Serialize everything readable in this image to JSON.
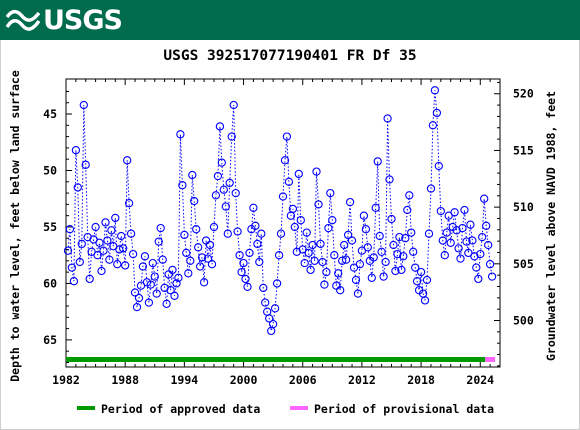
{
  "header": {
    "logo_text": "USGS",
    "logo_icon": "usgs-wave-icon",
    "background": "#006b4d"
  },
  "chart_data": {
    "type": "scatter",
    "title": "USGS 392517077190401 FR Df  35",
    "ylabel_left": "Depth to water level, feet below land surface",
    "ylabel_right": "Groundwater level above NAVD 1988, feet",
    "x_ticks": [
      "1982",
      "1988",
      "1994",
      "2000",
      "2006",
      "2012",
      "2018",
      "2024"
    ],
    "y_ticks_left": [
      "45",
      "50",
      "55",
      "60",
      "65"
    ],
    "y_ticks_right": [
      "500",
      "505",
      "510",
      "515",
      "520"
    ],
    "xlim": [
      1982,
      2026
    ],
    "ylim_left": [
      67.4,
      41.9
    ],
    "ylim_right": [
      495.9,
      521.3
    ],
    "series": [
      {
        "name": "Depth to water level",
        "color": "#0000ff",
        "marker": "open-circle",
        "line": "dotted",
        "points": [
          [
            1982.2,
            57.1
          ],
          [
            1982.4,
            55.2
          ],
          [
            1982.6,
            58.6
          ],
          [
            1982.8,
            59.8
          ],
          [
            1983.0,
            48.2
          ],
          [
            1983.2,
            51.5
          ],
          [
            1983.4,
            58.1
          ],
          [
            1983.6,
            56.5
          ],
          [
            1983.8,
            44.2
          ],
          [
            1984.0,
            49.5
          ],
          [
            1984.2,
            55.9
          ],
          [
            1984.4,
            59.6
          ],
          [
            1984.6,
            57.2
          ],
          [
            1984.8,
            56.1
          ],
          [
            1985.0,
            55.0
          ],
          [
            1985.2,
            57.5
          ],
          [
            1985.4,
            56.4
          ],
          [
            1985.6,
            58.9
          ],
          [
            1985.8,
            57.1
          ],
          [
            1986.0,
            54.6
          ],
          [
            1986.2,
            56.2
          ],
          [
            1986.4,
            57.9
          ],
          [
            1986.6,
            55.3
          ],
          [
            1986.8,
            56.7
          ],
          [
            1987.0,
            54.2
          ],
          [
            1987.2,
            58.3
          ],
          [
            1987.4,
            57.0
          ],
          [
            1987.6,
            55.8
          ],
          [
            1987.8,
            56.9
          ],
          [
            1988.0,
            58.4
          ],
          [
            1988.2,
            49.1
          ],
          [
            1988.4,
            52.9
          ],
          [
            1988.6,
            55.6
          ],
          [
            1988.8,
            57.4
          ],
          [
            1989.0,
            60.8
          ],
          [
            1989.2,
            62.1
          ],
          [
            1989.4,
            61.3
          ],
          [
            1989.6,
            60.2
          ],
          [
            1989.8,
            58.5
          ],
          [
            1990.0,
            57.6
          ],
          [
            1990.2,
            59.9
          ],
          [
            1990.4,
            61.7
          ],
          [
            1990.6,
            60.1
          ],
          [
            1990.8,
            58.2
          ],
          [
            1991.0,
            59.4
          ],
          [
            1991.2,
            60.9
          ],
          [
            1991.4,
            56.3
          ],
          [
            1991.6,
            55.1
          ],
          [
            1991.8,
            57.9
          ],
          [
            1992.0,
            60.4
          ],
          [
            1992.2,
            61.8
          ],
          [
            1992.4,
            59.2
          ],
          [
            1992.6,
            60.6
          ],
          [
            1992.8,
            58.8
          ],
          [
            1993.0,
            61.1
          ],
          [
            1993.2,
            60.0
          ],
          [
            1993.4,
            59.5
          ],
          [
            1993.6,
            46.8
          ],
          [
            1993.8,
            51.3
          ],
          [
            1994.0,
            55.7
          ],
          [
            1994.2,
            57.3
          ],
          [
            1994.4,
            59.1
          ],
          [
            1994.6,
            58.0
          ],
          [
            1994.8,
            50.4
          ],
          [
            1995.0,
            52.7
          ],
          [
            1995.2,
            55.2
          ],
          [
            1995.4,
            56.8
          ],
          [
            1995.6,
            58.5
          ],
          [
            1995.8,
            57.7
          ],
          [
            1996.0,
            59.9
          ],
          [
            1996.2,
            56.2
          ],
          [
            1996.4,
            57.8
          ],
          [
            1996.6,
            56.6
          ],
          [
            1996.8,
            58.3
          ],
          [
            1997.0,
            55.0
          ],
          [
            1997.2,
            52.2
          ],
          [
            1997.4,
            50.5
          ],
          [
            1997.6,
            46.1
          ],
          [
            1997.8,
            49.3
          ],
          [
            1998.0,
            51.7
          ],
          [
            1998.2,
            53.2
          ],
          [
            1998.4,
            55.6
          ],
          [
            1998.6,
            51.1
          ],
          [
            1998.8,
            47.0
          ],
          [
            1999.0,
            44.2
          ],
          [
            1999.2,
            52.0
          ],
          [
            1999.4,
            55.4
          ],
          [
            1999.6,
            57.5
          ],
          [
            1999.8,
            59.0
          ],
          [
            2000.0,
            58.2
          ],
          [
            2000.2,
            59.6
          ],
          [
            2000.4,
            60.3
          ],
          [
            2000.6,
            57.3
          ],
          [
            2000.8,
            55.2
          ],
          [
            2001.0,
            53.3
          ],
          [
            2001.2,
            54.9
          ],
          [
            2001.4,
            56.5
          ],
          [
            2001.6,
            58.1
          ],
          [
            2001.8,
            55.6
          ],
          [
            2002.0,
            60.4
          ],
          [
            2002.2,
            61.7
          ],
          [
            2002.4,
            62.5
          ],
          [
            2002.6,
            63.1
          ],
          [
            2002.8,
            64.2
          ],
          [
            2003.0,
            63.6
          ],
          [
            2003.2,
            62.2
          ],
          [
            2003.4,
            60.0
          ],
          [
            2003.6,
            57.5
          ],
          [
            2003.8,
            55.6
          ],
          [
            2004.0,
            52.3
          ],
          [
            2004.2,
            49.1
          ],
          [
            2004.4,
            47.0
          ],
          [
            2004.6,
            51.0
          ],
          [
            2004.8,
            54.0
          ],
          [
            2005.0,
            53.4
          ],
          [
            2005.2,
            55.0
          ],
          [
            2005.4,
            57.2
          ],
          [
            2005.6,
            50.3
          ],
          [
            2005.8,
            54.4
          ],
          [
            2006.0,
            57.0
          ],
          [
            2006.2,
            58.2
          ],
          [
            2006.4,
            55.5
          ],
          [
            2006.6,
            57.3
          ],
          [
            2006.8,
            58.8
          ],
          [
            2007.0,
            56.6
          ],
          [
            2007.2,
            58.0
          ],
          [
            2007.4,
            50.1
          ],
          [
            2007.6,
            53.0
          ],
          [
            2007.8,
            56.5
          ],
          [
            2008.0,
            58.1
          ],
          [
            2008.2,
            60.1
          ],
          [
            2008.4,
            59.0
          ],
          [
            2008.6,
            55.1
          ],
          [
            2008.8,
            52.0
          ],
          [
            2009.0,
            54.4
          ],
          [
            2009.2,
            57.5
          ],
          [
            2009.4,
            60.2
          ],
          [
            2009.6,
            59.1
          ],
          [
            2009.8,
            60.6
          ],
          [
            2010.0,
            58.0
          ],
          [
            2010.2,
            56.6
          ],
          [
            2010.4,
            57.9
          ],
          [
            2010.6,
            55.7
          ],
          [
            2010.8,
            52.8
          ],
          [
            2011.0,
            56.2
          ],
          [
            2011.2,
            58.6
          ],
          [
            2011.4,
            59.7
          ],
          [
            2011.6,
            60.9
          ],
          [
            2011.8,
            58.3
          ],
          [
            2012.0,
            57.1
          ],
          [
            2012.2,
            54.0
          ],
          [
            2012.4,
            55.2
          ],
          [
            2012.6,
            56.8
          ],
          [
            2012.8,
            58.0
          ],
          [
            2013.0,
            59.5
          ],
          [
            2013.2,
            57.7
          ],
          [
            2013.4,
            53.3
          ],
          [
            2013.6,
            49.2
          ],
          [
            2013.8,
            55.8
          ],
          [
            2014.0,
            57.2
          ],
          [
            2014.2,
            59.4
          ],
          [
            2014.4,
            58.1
          ],
          [
            2014.6,
            45.4
          ],
          [
            2014.8,
            50.8
          ],
          [
            2015.0,
            54.3
          ],
          [
            2015.2,
            56.6
          ],
          [
            2015.4,
            58.9
          ],
          [
            2015.6,
            57.4
          ],
          [
            2015.8,
            55.9
          ],
          [
            2016.0,
            58.8
          ],
          [
            2016.2,
            57.6
          ],
          [
            2016.4,
            56.0
          ],
          [
            2016.6,
            53.5
          ],
          [
            2016.8,
            52.2
          ],
          [
            2017.0,
            55.5
          ],
          [
            2017.2,
            57.2
          ],
          [
            2017.4,
            58.6
          ],
          [
            2017.6,
            59.8
          ],
          [
            2017.8,
            60.6
          ],
          [
            2018.0,
            59.0
          ],
          [
            2018.2,
            60.9
          ],
          [
            2018.4,
            61.5
          ],
          [
            2018.6,
            59.7
          ],
          [
            2018.8,
            55.6
          ],
          [
            2019.0,
            51.6
          ],
          [
            2019.2,
            46.0
          ],
          [
            2019.4,
            42.9
          ],
          [
            2019.6,
            44.9
          ],
          [
            2019.8,
            49.6
          ],
          [
            2020.0,
            53.6
          ],
          [
            2020.2,
            56.2
          ],
          [
            2020.4,
            57.5
          ],
          [
            2020.6,
            55.5
          ],
          [
            2020.8,
            54.0
          ],
          [
            2021.0,
            56.4
          ],
          [
            2021.2,
            55.0
          ],
          [
            2021.4,
            53.7
          ],
          [
            2021.6,
            55.3
          ],
          [
            2021.8,
            56.9
          ],
          [
            2022.0,
            57.8
          ],
          [
            2022.2,
            55.1
          ],
          [
            2022.4,
            53.5
          ],
          [
            2022.6,
            56.3
          ],
          [
            2022.8,
            57.3
          ],
          [
            2023.0,
            54.8
          ],
          [
            2023.2,
            56.2
          ],
          [
            2023.4,
            57.6
          ],
          [
            2023.6,
            58.6
          ],
          [
            2023.8,
            59.6
          ],
          [
            2024.0,
            57.4
          ],
          [
            2024.2,
            55.9
          ],
          [
            2024.4,
            52.5
          ],
          [
            2024.6,
            54.9
          ],
          [
            2024.8,
            56.6
          ],
          [
            2025.0,
            58.3
          ],
          [
            2025.2,
            59.4
          ]
        ]
      }
    ],
    "bars": [
      {
        "label": "Period of approved data",
        "start": 1982,
        "end": 2024.5,
        "color": "#009900"
      },
      {
        "label": "Period of provisional data",
        "start": 2024.5,
        "end": 2025.5,
        "color": "#ff66ff"
      }
    ]
  },
  "legend": {
    "approved_label": "Period of approved data",
    "approved_color": "#009900",
    "provisional_label": "Period of provisional data",
    "provisional_color": "#ff66ff"
  }
}
